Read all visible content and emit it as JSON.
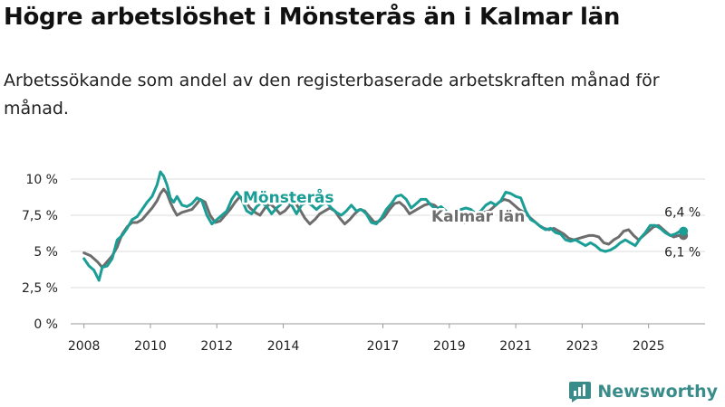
{
  "title": "Högre arbetslöshet i Mönsterås än i Kalmar län",
  "subtitle": "Arbetssökande som andel av den registerbaserade arbetskraften månad för månad.",
  "brand": {
    "name": "Newsworthy",
    "icon": "newsworthy-logo-icon"
  },
  "colors": {
    "monsteras": "#1a9e96",
    "kalmar": "#6d6d6d",
    "grid": "#dddddd",
    "brand": "#3a8c8a"
  },
  "chart_data": {
    "type": "line",
    "title": "Högre arbetslöshet i Mönsterås än i Kalmar län",
    "subtitle": "Arbetssökande som andel av den registerbaserade arbetskraften månad för månad.",
    "xlabel": "",
    "ylabel": "",
    "xlim": [
      2007.6,
      2026.7
    ],
    "ylim": [
      0,
      10
    ],
    "grid": true,
    "y_ticks": [
      {
        "value": 0,
        "label": "0 %"
      },
      {
        "value": 2.5,
        "label": "2,5 %"
      },
      {
        "value": 5,
        "label": "5 %"
      },
      {
        "value": 7.5,
        "label": "7,5 %"
      },
      {
        "value": 10,
        "label": "10 %"
      }
    ],
    "x_ticks": [
      {
        "value": 2008,
        "label": "2008"
      },
      {
        "value": 2010,
        "label": "2010"
      },
      {
        "value": 2012,
        "label": "2012"
      },
      {
        "value": 2014,
        "label": "2014"
      },
      {
        "value": 2017,
        "label": "2017"
      },
      {
        "value": 2019,
        "label": "2019"
      },
      {
        "value": 2021,
        "label": "2021"
      },
      {
        "value": 2023,
        "label": "2023"
      },
      {
        "value": 2025,
        "label": "2025"
      }
    ],
    "series": [
      {
        "name": "Kalmar län",
        "label": "Kalmar län",
        "color": "#6d6d6d",
        "end_label": "6,1 %",
        "end_value": 6.1,
        "points": [
          [
            2008.0,
            4.9
          ],
          [
            2008.2,
            4.7
          ],
          [
            2008.4,
            4.3
          ],
          [
            2008.55,
            3.9
          ],
          [
            2008.7,
            4.3
          ],
          [
            2008.85,
            4.7
          ],
          [
            2009.0,
            5.3
          ],
          [
            2009.15,
            6.2
          ],
          [
            2009.3,
            6.7
          ],
          [
            2009.45,
            7.0
          ],
          [
            2009.6,
            7.0
          ],
          [
            2009.75,
            7.2
          ],
          [
            2009.9,
            7.6
          ],
          [
            2010.05,
            8.0
          ],
          [
            2010.2,
            8.5
          ],
          [
            2010.3,
            9.0
          ],
          [
            2010.4,
            9.3
          ],
          [
            2010.5,
            9.0
          ],
          [
            2010.6,
            8.4
          ],
          [
            2010.7,
            7.9
          ],
          [
            2010.8,
            7.5
          ],
          [
            2010.95,
            7.7
          ],
          [
            2011.1,
            7.8
          ],
          [
            2011.25,
            7.9
          ],
          [
            2011.4,
            8.3
          ],
          [
            2011.5,
            8.6
          ],
          [
            2011.65,
            8.4
          ],
          [
            2011.8,
            7.5
          ],
          [
            2011.95,
            7.0
          ],
          [
            2012.1,
            7.1
          ],
          [
            2012.25,
            7.5
          ],
          [
            2012.4,
            7.9
          ],
          [
            2012.55,
            8.4
          ],
          [
            2012.7,
            8.8
          ],
          [
            2012.85,
            8.5
          ],
          [
            2013.0,
            8.0
          ],
          [
            2013.15,
            7.7
          ],
          [
            2013.3,
            7.5
          ],
          [
            2013.45,
            8.0
          ],
          [
            2013.6,
            8.3
          ],
          [
            2013.75,
            8.0
          ],
          [
            2013.9,
            7.6
          ],
          [
            2014.05,
            7.8
          ],
          [
            2014.2,
            8.2
          ],
          [
            2014.35,
            8.4
          ],
          [
            2014.5,
            7.9
          ],
          [
            2014.65,
            7.3
          ],
          [
            2014.8,
            6.9
          ],
          [
            2014.95,
            7.2
          ],
          [
            2015.1,
            7.6
          ],
          [
            2015.25,
            7.8
          ],
          [
            2015.4,
            8.0
          ],
          [
            2015.55,
            7.8
          ],
          [
            2015.7,
            7.3
          ],
          [
            2015.85,
            6.9
          ],
          [
            2016.0,
            7.2
          ],
          [
            2016.15,
            7.6
          ],
          [
            2016.3,
            7.9
          ],
          [
            2016.45,
            7.8
          ],
          [
            2016.6,
            7.4
          ],
          [
            2016.75,
            7.0
          ],
          [
            2016.9,
            7.1
          ],
          [
            2017.05,
            7.4
          ],
          [
            2017.2,
            7.9
          ],
          [
            2017.35,
            8.3
          ],
          [
            2017.5,
            8.4
          ],
          [
            2017.65,
            8.1
          ],
          [
            2017.8,
            7.6
          ],
          [
            2017.95,
            7.8
          ],
          [
            2018.1,
            8.0
          ],
          [
            2018.25,
            8.2
          ],
          [
            2018.4,
            8.3
          ],
          [
            2018.55,
            8.2
          ],
          [
            2018.7,
            7.9
          ],
          [
            2018.85,
            7.7
          ],
          [
            2019.0,
            7.6
          ],
          [
            2019.15,
            7.5
          ],
          [
            2019.3,
            7.2
          ],
          [
            2019.45,
            7.0
          ],
          [
            2019.6,
            7.1
          ],
          [
            2019.75,
            7.4
          ],
          [
            2019.9,
            7.6
          ],
          [
            2020.05,
            7.7
          ],
          [
            2020.2,
            7.8
          ],
          [
            2020.35,
            8.1
          ],
          [
            2020.5,
            8.4
          ],
          [
            2020.65,
            8.6
          ],
          [
            2020.8,
            8.5
          ],
          [
            2020.95,
            8.2
          ],
          [
            2021.1,
            7.9
          ],
          [
            2021.25,
            7.7
          ],
          [
            2021.4,
            7.4
          ],
          [
            2021.55,
            7.1
          ],
          [
            2021.7,
            6.8
          ],
          [
            2021.85,
            6.6
          ],
          [
            2022.0,
            6.5
          ],
          [
            2022.15,
            6.6
          ],
          [
            2022.3,
            6.4
          ],
          [
            2022.45,
            6.2
          ],
          [
            2022.6,
            5.9
          ],
          [
            2022.75,
            5.8
          ],
          [
            2022.9,
            5.9
          ],
          [
            2023.05,
            6.0
          ],
          [
            2023.2,
            6.1
          ],
          [
            2023.35,
            6.1
          ],
          [
            2023.5,
            6.0
          ],
          [
            2023.65,
            5.6
          ],
          [
            2023.8,
            5.5
          ],
          [
            2023.95,
            5.8
          ],
          [
            2024.1,
            6.0
          ],
          [
            2024.25,
            6.4
          ],
          [
            2024.4,
            6.5
          ],
          [
            2024.55,
            6.1
          ],
          [
            2024.7,
            5.8
          ],
          [
            2024.85,
            6.1
          ],
          [
            2025.0,
            6.4
          ],
          [
            2025.15,
            6.7
          ],
          [
            2025.3,
            6.8
          ],
          [
            2025.45,
            6.5
          ],
          [
            2025.6,
            6.2
          ],
          [
            2025.75,
            6.0
          ],
          [
            2025.9,
            6.1
          ],
          [
            2026.05,
            6.1
          ]
        ]
      },
      {
        "name": "Mönsterås",
        "label": "Mönsterås",
        "color": "#1a9e96",
        "end_label": "6,4 %",
        "end_value": 6.4,
        "points": [
          [
            2008.0,
            4.5
          ],
          [
            2008.15,
            4.0
          ],
          [
            2008.3,
            3.7
          ],
          [
            2008.45,
            3.0
          ],
          [
            2008.55,
            3.9
          ],
          [
            2008.7,
            4.0
          ],
          [
            2008.85,
            4.5
          ],
          [
            2009.0,
            5.8
          ],
          [
            2009.15,
            6.1
          ],
          [
            2009.3,
            6.6
          ],
          [
            2009.45,
            7.2
          ],
          [
            2009.6,
            7.4
          ],
          [
            2009.75,
            7.9
          ],
          [
            2009.9,
            8.4
          ],
          [
            2010.05,
            8.8
          ],
          [
            2010.2,
            9.6
          ],
          [
            2010.3,
            10.5
          ],
          [
            2010.4,
            10.2
          ],
          [
            2010.5,
            9.6
          ],
          [
            2010.6,
            8.7
          ],
          [
            2010.7,
            8.4
          ],
          [
            2010.8,
            8.8
          ],
          [
            2010.95,
            8.2
          ],
          [
            2011.1,
            8.1
          ],
          [
            2011.25,
            8.3
          ],
          [
            2011.4,
            8.7
          ],
          [
            2011.55,
            8.5
          ],
          [
            2011.7,
            7.5
          ],
          [
            2011.85,
            6.9
          ],
          [
            2012.0,
            7.2
          ],
          [
            2012.15,
            7.5
          ],
          [
            2012.3,
            7.8
          ],
          [
            2012.45,
            8.6
          ],
          [
            2012.6,
            9.1
          ],
          [
            2012.75,
            8.6
          ],
          [
            2012.9,
            7.8
          ],
          [
            2013.05,
            7.6
          ],
          [
            2013.2,
            8.1
          ],
          [
            2013.35,
            8.4
          ],
          [
            2013.5,
            8.1
          ],
          [
            2013.65,
            7.6
          ],
          [
            2013.8,
            8.0
          ],
          [
            2013.95,
            8.3
          ],
          [
            2014.1,
            8.5
          ],
          [
            2014.25,
            8.2
          ],
          [
            2014.4,
            7.6
          ],
          [
            2014.55,
            8.2
          ],
          [
            2014.7,
            8.4
          ],
          [
            2014.85,
            8.2
          ],
          [
            2015.0,
            7.9
          ],
          [
            2015.15,
            8.2
          ],
          [
            2015.3,
            8.4
          ],
          [
            2015.45,
            8.0
          ],
          [
            2015.6,
            7.7
          ],
          [
            2015.75,
            7.5
          ],
          [
            2015.9,
            7.8
          ],
          [
            2016.05,
            8.2
          ],
          [
            2016.2,
            7.8
          ],
          [
            2016.35,
            7.9
          ],
          [
            2016.5,
            7.6
          ],
          [
            2016.65,
            7.0
          ],
          [
            2016.8,
            6.9
          ],
          [
            2016.95,
            7.3
          ],
          [
            2017.1,
            7.9
          ],
          [
            2017.25,
            8.3
          ],
          [
            2017.4,
            8.8
          ],
          [
            2017.55,
            8.9
          ],
          [
            2017.7,
            8.6
          ],
          [
            2017.85,
            8.0
          ],
          [
            2018.0,
            8.3
          ],
          [
            2018.15,
            8.6
          ],
          [
            2018.3,
            8.6
          ],
          [
            2018.45,
            8.2
          ],
          [
            2018.6,
            7.9
          ],
          [
            2018.75,
            8.1
          ],
          [
            2018.9,
            7.8
          ],
          [
            2019.05,
            7.5
          ],
          [
            2019.2,
            7.7
          ],
          [
            2019.35,
            7.9
          ],
          [
            2019.5,
            8.0
          ],
          [
            2019.65,
            7.9
          ],
          [
            2019.8,
            7.6
          ],
          [
            2019.95,
            7.8
          ],
          [
            2020.1,
            8.2
          ],
          [
            2020.25,
            8.4
          ],
          [
            2020.4,
            8.2
          ],
          [
            2020.55,
            8.5
          ],
          [
            2020.7,
            9.1
          ],
          [
            2020.85,
            9.0
          ],
          [
            2021.0,
            8.8
          ],
          [
            2021.15,
            8.7
          ],
          [
            2021.3,
            7.8
          ],
          [
            2021.45,
            7.2
          ],
          [
            2021.6,
            7.0
          ],
          [
            2021.75,
            6.7
          ],
          [
            2021.9,
            6.5
          ],
          [
            2022.05,
            6.6
          ],
          [
            2022.2,
            6.3
          ],
          [
            2022.35,
            6.2
          ],
          [
            2022.5,
            5.8
          ],
          [
            2022.65,
            5.7
          ],
          [
            2022.8,
            5.8
          ],
          [
            2022.95,
            5.6
          ],
          [
            2023.1,
            5.4
          ],
          [
            2023.25,
            5.6
          ],
          [
            2023.4,
            5.4
          ],
          [
            2023.55,
            5.1
          ],
          [
            2023.7,
            5.0
          ],
          [
            2023.85,
            5.1
          ],
          [
            2024.0,
            5.3
          ],
          [
            2024.15,
            5.6
          ],
          [
            2024.3,
            5.8
          ],
          [
            2024.45,
            5.6
          ],
          [
            2024.6,
            5.4
          ],
          [
            2024.75,
            5.9
          ],
          [
            2024.9,
            6.3
          ],
          [
            2025.05,
            6.8
          ],
          [
            2025.2,
            6.8
          ],
          [
            2025.35,
            6.6
          ],
          [
            2025.5,
            6.3
          ],
          [
            2025.65,
            6.1
          ],
          [
            2025.8,
            6.2
          ],
          [
            2025.95,
            6.4
          ],
          [
            2026.05,
            6.4
          ]
        ]
      }
    ]
  }
}
